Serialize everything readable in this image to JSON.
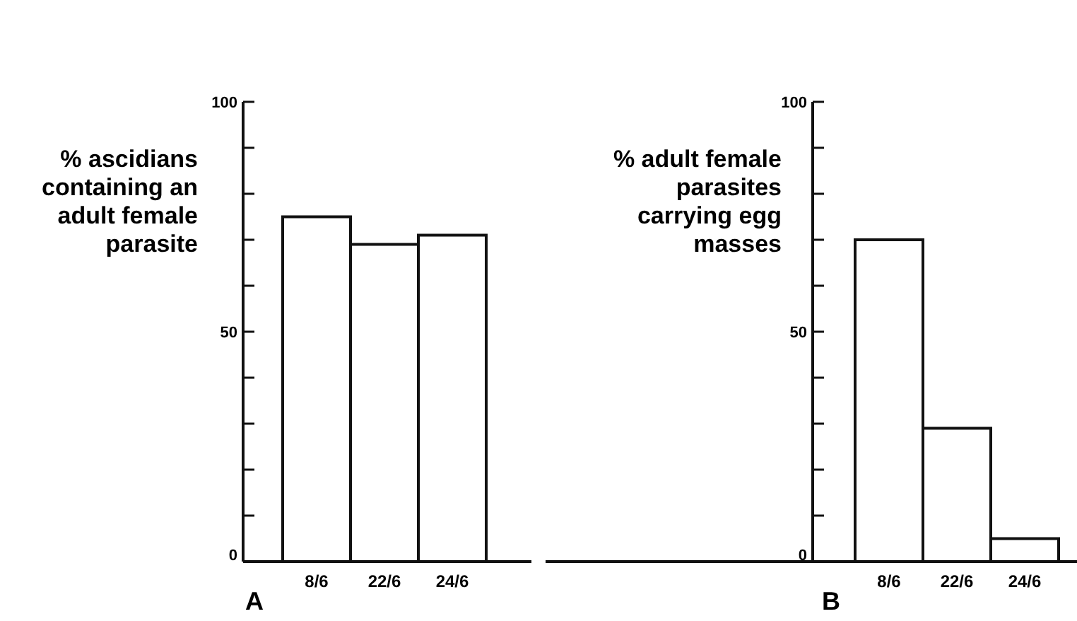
{
  "chart_data": [
    {
      "type": "bar",
      "ylabel": "% ascidians containing an adult female parasite",
      "categories": [
        "8/6",
        "22/6",
        "24/6"
      ],
      "values": [
        75,
        69,
        71
      ],
      "color": "#ffffff",
      "ylim": [
        0,
        100
      ],
      "yticks": [
        0,
        {
          "value": 10,
          "label": null
        },
        {
          "value": 20,
          "label": null
        },
        {
          "value": 30,
          "label": null
        },
        {
          "value": 40,
          "label": null
        },
        50,
        {
          "value": 60,
          "label": null
        },
        {
          "value": 70,
          "label": null
        },
        {
          "value": 80,
          "label": null
        },
        {
          "value": 90,
          "label": null
        },
        100
      ],
      "annotations": [
        "A"
      ]
    },
    {
      "type": "bar",
      "ylabel": "% adult female parasites carrying egg masses",
      "categories": [
        "8/6",
        "22/6",
        "24/6"
      ],
      "values": [
        70,
        29,
        5
      ],
      "color": "#ffffff",
      "ylim": [
        0,
        100
      ],
      "yticks": [
        0,
        {
          "value": 10,
          "label": null
        },
        {
          "value": 20,
          "label": null
        },
        {
          "value": 30,
          "label": null
        },
        {
          "value": 40,
          "label": null
        },
        50,
        {
          "value": 60,
          "label": null
        },
        {
          "value": 70,
          "label": null
        },
        {
          "value": 80,
          "label": null
        },
        {
          "value": 90,
          "label": null
        },
        100
      ],
      "annotations": [
        "B"
      ]
    }
  ]
}
